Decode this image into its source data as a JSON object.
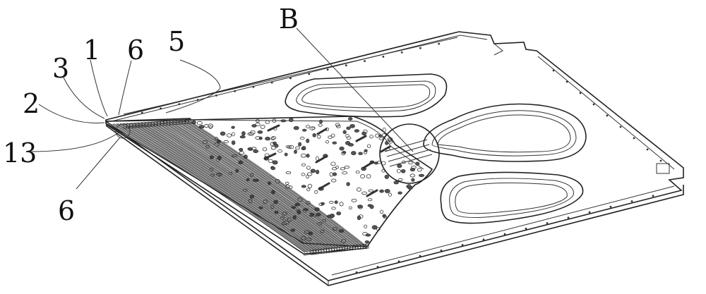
{
  "figure": {
    "labels": {
      "l1": "1",
      "l2": "2",
      "l3": "3",
      "l5": "5",
      "l6_top": "6",
      "l6_bottom": "6",
      "l13": "13",
      "lB": "B"
    },
    "colors": {
      "line": "#222222",
      "background": "#ffffff"
    }
  }
}
